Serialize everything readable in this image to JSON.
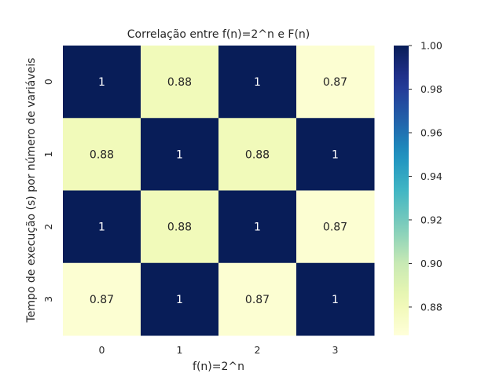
{
  "chart_data": {
    "type": "heatmap",
    "title": "Correlação entre f(n)=2^n e F(n)",
    "xlabel": "f(n)=2^n",
    "ylabel": "Tempo de execução (s) por número de variáveis",
    "x_categories": [
      "0",
      "1",
      "2",
      "3"
    ],
    "y_categories": [
      "0",
      "1",
      "2",
      "3"
    ],
    "values": [
      [
        1.0,
        0.88,
        1.0,
        0.87
      ],
      [
        0.88,
        1.0,
        0.88,
        1.0
      ],
      [
        1.0,
        0.88,
        1.0,
        0.87
      ],
      [
        0.87,
        1.0,
        0.87,
        1.0
      ]
    ],
    "annotations": [
      [
        "1",
        "0.88",
        "1",
        "0.87"
      ],
      [
        "0.88",
        "1",
        "0.88",
        "1"
      ],
      [
        "1",
        "0.88",
        "1",
        "0.87"
      ],
      [
        "0.87",
        "1",
        "0.87",
        "1"
      ]
    ],
    "colormap": "YlGnBu",
    "colorbar": {
      "range": [
        0.867,
        1.0
      ],
      "ticks": [
        0.88,
        0.9,
        0.92,
        0.94,
        0.96,
        0.98,
        1.0
      ],
      "tick_labels": [
        "0.88",
        "0.90",
        "0.92",
        "0.94",
        "0.96",
        "0.98",
        "1.00"
      ]
    },
    "grid": false
  }
}
